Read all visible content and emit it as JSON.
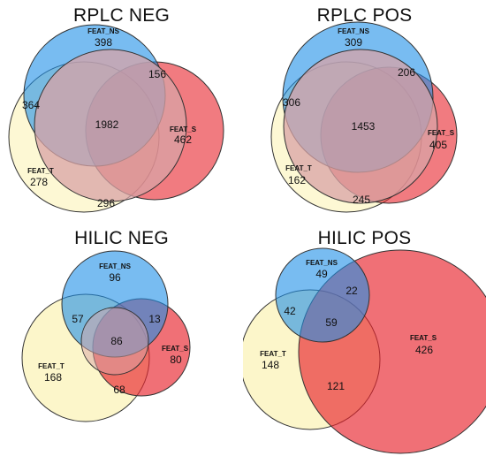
{
  "colors": {
    "ns_fill": "#1e8fe8",
    "s_fill": "#e8232c",
    "t_fill": "#fbf3b8",
    "stroke": "#333333"
  },
  "panels": [
    {
      "title": "RPLC NEG",
      "set_labels": {
        "ns": "FEAT_NS",
        "s": "FEAT_S",
        "t": "FEAT_T"
      },
      "regions": {
        "ns_only": "398",
        "s_only": "462",
        "t_only": "278",
        "ns_s": "156",
        "ns_t": "364",
        "s_t": "296",
        "all": "1982"
      }
    },
    {
      "title": "RPLC POS",
      "set_labels": {
        "ns": "FEAT_NS",
        "s": "FEAT_S",
        "t": "FEAT_T"
      },
      "regions": {
        "ns_only": "309",
        "s_only": "405",
        "t_only": "162",
        "ns_s": "206",
        "ns_t": "306",
        "s_t": "245",
        "all": "1453"
      }
    },
    {
      "title": "HILIC NEG",
      "set_labels": {
        "ns": "FEAT_NS",
        "s": "FEAT_S",
        "t": "FEAT_T"
      },
      "regions": {
        "ns_only": "96",
        "s_only": "80",
        "t_only": "168",
        "ns_s": "13",
        "ns_t": "57",
        "s_t": "68",
        "all": "86"
      }
    },
    {
      "title": "HILIC POS",
      "set_labels": {
        "ns": "FEAT_NS",
        "s": "FEAT_S",
        "t": "FEAT_T"
      },
      "regions": {
        "ns_only": "49",
        "s_only": "426",
        "t_only": "148",
        "ns_s": "22",
        "ns_t": "42",
        "s_t": "121",
        "all": "59"
      }
    }
  ]
}
